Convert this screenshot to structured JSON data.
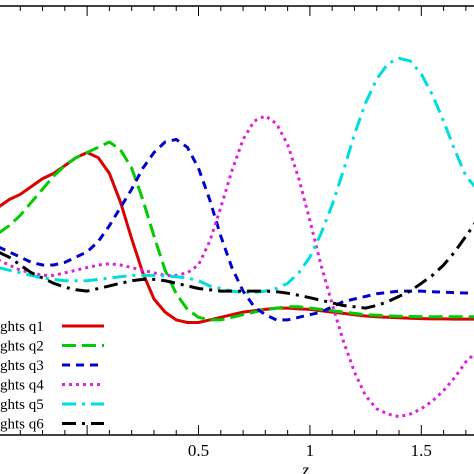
{
  "chart_data": {
    "type": "line",
    "xlabel": "z",
    "ylabel": "",
    "title": "",
    "xlim": [
      -0.4,
      1.75
    ],
    "ylim": [
      -0.72,
      0.92
    ],
    "x_ticks": [
      {
        "value": 0.5,
        "label": "0.5"
      },
      {
        "value": 1.0,
        "label": "1"
      },
      {
        "value": 1.5,
        "label": "1.5"
      }
    ],
    "grid": false,
    "legend_position": "bottom-left",
    "series": [
      {
        "name": "ghts q1",
        "color": "#dd0000",
        "dash": "solid",
        "x": [
          -0.4,
          -0.35,
          -0.3,
          -0.25,
          -0.2,
          -0.15,
          -0.1,
          -0.05,
          0.0,
          0.05,
          0.1,
          0.15,
          0.2,
          0.25,
          0.3,
          0.35,
          0.4,
          0.45,
          0.5,
          0.55,
          0.6,
          0.65,
          0.7,
          0.75,
          0.8,
          0.85,
          0.9,
          0.95,
          1.0,
          1.05,
          1.1,
          1.15,
          1.2,
          1.25,
          1.3,
          1.35,
          1.4,
          1.45,
          1.5,
          1.55,
          1.6,
          1.65,
          1.7,
          1.75
        ],
        "y": [
          0.15,
          0.18,
          0.2,
          0.23,
          0.26,
          0.28,
          0.31,
          0.34,
          0.36,
          0.34,
          0.28,
          0.17,
          0.03,
          -0.1,
          -0.2,
          -0.25,
          -0.28,
          -0.29,
          -0.29,
          -0.28,
          -0.27,
          -0.26,
          -0.25,
          -0.245,
          -0.24,
          -0.235,
          -0.235,
          -0.238,
          -0.24,
          -0.245,
          -0.25,
          -0.255,
          -0.26,
          -0.265,
          -0.268,
          -0.27,
          -0.272,
          -0.274,
          -0.275,
          -0.276,
          -0.276,
          -0.277,
          -0.277,
          -0.277
        ]
      },
      {
        "name": "ghts q2",
        "color": "#00cc00",
        "dash": "long-dash",
        "x": [
          -0.4,
          -0.35,
          -0.3,
          -0.25,
          -0.2,
          -0.15,
          -0.1,
          -0.05,
          0.0,
          0.05,
          0.1,
          0.15,
          0.2,
          0.25,
          0.3,
          0.35,
          0.4,
          0.45,
          0.5,
          0.55,
          0.6,
          0.65,
          0.7,
          0.75,
          0.8,
          0.85,
          0.9,
          0.95,
          1.0,
          1.05,
          1.1,
          1.15,
          1.2,
          1.25,
          1.3,
          1.35,
          1.4,
          1.45,
          1.5,
          1.55,
          1.6,
          1.65,
          1.7,
          1.75
        ],
        "y": [
          0.05,
          0.08,
          0.12,
          0.17,
          0.22,
          0.27,
          0.31,
          0.34,
          0.36,
          0.38,
          0.4,
          0.37,
          0.3,
          0.18,
          0.04,
          -0.09,
          -0.18,
          -0.24,
          -0.27,
          -0.28,
          -0.28,
          -0.27,
          -0.26,
          -0.25,
          -0.24,
          -0.235,
          -0.23,
          -0.23,
          -0.235,
          -0.24,
          -0.245,
          -0.25,
          -0.255,
          -0.26,
          -0.262,
          -0.265,
          -0.266,
          -0.267,
          -0.268,
          -0.268,
          -0.268,
          -0.268,
          -0.268,
          -0.268
        ]
      },
      {
        "name": "ghts q3",
        "color": "#0000cc",
        "dash": "dash",
        "x": [
          -0.4,
          -0.35,
          -0.3,
          -0.25,
          -0.2,
          -0.15,
          -0.1,
          -0.05,
          0.0,
          0.05,
          0.1,
          0.15,
          0.2,
          0.25,
          0.3,
          0.35,
          0.4,
          0.45,
          0.5,
          0.55,
          0.6,
          0.65,
          0.7,
          0.75,
          0.8,
          0.85,
          0.9,
          0.95,
          1.0,
          1.05,
          1.1,
          1.15,
          1.2,
          1.25,
          1.3,
          1.35,
          1.4,
          1.45,
          1.5,
          1.55,
          1.6,
          1.65,
          1.7,
          1.75
        ],
        "y": [
          0.0,
          -0.02,
          -0.04,
          -0.06,
          -0.07,
          -0.07,
          -0.06,
          -0.04,
          -0.02,
          0.02,
          0.08,
          0.15,
          0.22,
          0.3,
          0.36,
          0.4,
          0.41,
          0.38,
          0.3,
          0.18,
          0.04,
          -0.08,
          -0.17,
          -0.23,
          -0.26,
          -0.28,
          -0.28,
          -0.27,
          -0.26,
          -0.25,
          -0.23,
          -0.21,
          -0.2,
          -0.19,
          -0.18,
          -0.175,
          -0.17,
          -0.17,
          -0.17,
          -0.172,
          -0.174,
          -0.176,
          -0.177,
          -0.178
        ]
      },
      {
        "name": "ghts q4",
        "color": "#dd22dd",
        "dash": "dot",
        "x": [
          -0.4,
          -0.35,
          -0.3,
          -0.25,
          -0.2,
          -0.15,
          -0.1,
          -0.05,
          0.0,
          0.05,
          0.1,
          0.15,
          0.2,
          0.25,
          0.3,
          0.35,
          0.4,
          0.45,
          0.5,
          0.55,
          0.6,
          0.65,
          0.7,
          0.75,
          0.8,
          0.85,
          0.9,
          0.95,
          1.0,
          1.05,
          1.1,
          1.15,
          1.2,
          1.25,
          1.3,
          1.35,
          1.4,
          1.45,
          1.5,
          1.55,
          1.6,
          1.65,
          1.7,
          1.75
        ],
        "y": [
          -0.05,
          -0.07,
          -0.09,
          -0.1,
          -0.11,
          -0.11,
          -0.1,
          -0.09,
          -0.08,
          -0.07,
          -0.065,
          -0.07,
          -0.08,
          -0.09,
          -0.1,
          -0.11,
          -0.11,
          -0.1,
          -0.07,
          0.02,
          0.15,
          0.29,
          0.41,
          0.48,
          0.5,
          0.47,
          0.39,
          0.26,
          0.1,
          -0.07,
          -0.22,
          -0.36,
          -0.48,
          -0.57,
          -0.62,
          -0.64,
          -0.65,
          -0.64,
          -0.62,
          -0.59,
          -0.55,
          -0.5,
          -0.44,
          -0.4
        ]
      },
      {
        "name": "ghts q5",
        "color": "#00dddd",
        "dash": "dash-dot",
        "x": [
          -0.4,
          -0.35,
          -0.3,
          -0.25,
          -0.2,
          -0.15,
          -0.1,
          -0.05,
          0.0,
          0.05,
          0.1,
          0.15,
          0.2,
          0.25,
          0.3,
          0.35,
          0.4,
          0.45,
          0.5,
          0.55,
          0.6,
          0.65,
          0.7,
          0.75,
          0.8,
          0.85,
          0.9,
          0.95,
          1.0,
          1.05,
          1.1,
          1.15,
          1.2,
          1.25,
          1.3,
          1.35,
          1.4,
          1.45,
          1.5,
          1.55,
          1.6,
          1.65,
          1.7,
          1.75
        ],
        "y": [
          -0.08,
          -0.09,
          -0.1,
          -0.11,
          -0.12,
          -0.125,
          -0.13,
          -0.13,
          -0.13,
          -0.125,
          -0.12,
          -0.115,
          -0.11,
          -0.11,
          -0.11,
          -0.112,
          -0.115,
          -0.12,
          -0.13,
          -0.15,
          -0.16,
          -0.17,
          -0.175,
          -0.175,
          -0.17,
          -0.16,
          -0.14,
          -0.1,
          -0.04,
          0.05,
          0.16,
          0.29,
          0.43,
          0.55,
          0.64,
          0.7,
          0.72,
          0.71,
          0.66,
          0.58,
          0.48,
          0.37,
          0.27,
          0.22
        ]
      },
      {
        "name": "ghts q6",
        "color": "#000000",
        "dash": "dash-dot",
        "x": [
          -0.4,
          -0.35,
          -0.3,
          -0.25,
          -0.2,
          -0.15,
          -0.1,
          -0.05,
          0.0,
          0.05,
          0.1,
          0.15,
          0.2,
          0.25,
          0.3,
          0.35,
          0.4,
          0.45,
          0.5,
          0.55,
          0.6,
          0.65,
          0.7,
          0.75,
          0.8,
          0.85,
          0.9,
          0.95,
          1.0,
          1.05,
          1.1,
          1.15,
          1.2,
          1.25,
          1.3,
          1.35,
          1.4,
          1.45,
          1.5,
          1.55,
          1.6,
          1.65,
          1.7,
          1.75
        ],
        "y": [
          -0.02,
          -0.04,
          -0.07,
          -0.1,
          -0.12,
          -0.14,
          -0.155,
          -0.165,
          -0.17,
          -0.16,
          -0.15,
          -0.14,
          -0.13,
          -0.125,
          -0.125,
          -0.13,
          -0.14,
          -0.15,
          -0.16,
          -0.165,
          -0.17,
          -0.17,
          -0.17,
          -0.17,
          -0.17,
          -0.172,
          -0.178,
          -0.186,
          -0.195,
          -0.205,
          -0.215,
          -0.225,
          -0.23,
          -0.235,
          -0.225,
          -0.21,
          -0.19,
          -0.17,
          -0.14,
          -0.11,
          -0.07,
          -0.02,
          0.04,
          0.1
        ]
      }
    ]
  }
}
